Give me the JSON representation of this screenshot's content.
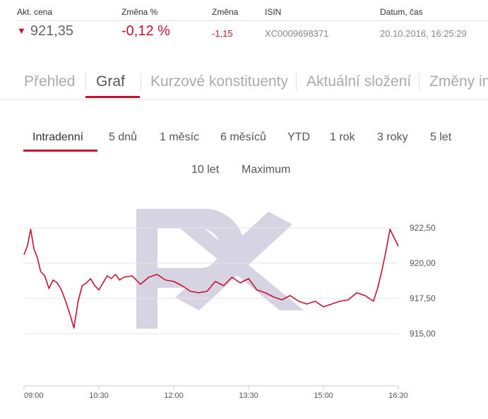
{
  "quote": {
    "labels": {
      "price": "Akt. cena",
      "pct": "Změna %",
      "change": "Změna",
      "isin": "ISIN",
      "datetime": "Datum, čas"
    },
    "price": "921,35",
    "pct": "-0,12 %",
    "change": "-1,15",
    "isin": "XC0009698371",
    "datetime": "20.10.2016, 16:25:29",
    "direction_icon": "down-triangle-icon"
  },
  "tabs": [
    "Přehled",
    "Graf",
    "Kurzové konstituenty",
    "Aktuální složení",
    "Změny in"
  ],
  "active_tab": "Graf",
  "periods": [
    "Intradenní",
    "5 dnů",
    "1 měsíc",
    "6 měsíců",
    "YTD",
    "1 rok",
    "3 roky",
    "5 let",
    "10 let",
    "Maximum"
  ],
  "active_period": "Intradenní",
  "colors": {
    "accent": "#c8102e",
    "watermark": "#d6d3e3",
    "grid": "#e6e6e6"
  },
  "chart_data": {
    "type": "line",
    "title": "",
    "xlabel": "",
    "ylabel": "",
    "x_ticks": [
      "09:00",
      "10:30",
      "12:00",
      "13:30",
      "15:00",
      "16:30"
    ],
    "y_ticks": [
      "922,50",
      "920,00",
      "917,50",
      "915,00"
    ],
    "y_tick_values": [
      922.5,
      920.0,
      917.5,
      915.0
    ],
    "ylim": [
      912.5,
      925.0
    ],
    "xlim": [
      "09:00",
      "16:30"
    ],
    "grid": "horizontal",
    "watermark": "PX",
    "series": [
      {
        "name": "",
        "x": [
          "09:00",
          "09:04",
          "09:08",
          "09:12",
          "09:16",
          "09:20",
          "09:25",
          "09:30",
          "09:35",
          "09:40",
          "09:45",
          "09:50",
          "09:55",
          "10:00",
          "10:05",
          "10:10",
          "10:15",
          "10:20",
          "10:25",
          "10:30",
          "10:35",
          "10:40",
          "10:45",
          "10:50",
          "10:55",
          "11:00",
          "11:10",
          "11:20",
          "11:30",
          "11:40",
          "11:50",
          "12:00",
          "12:10",
          "12:20",
          "12:30",
          "12:40",
          "12:50",
          "13:00",
          "13:10",
          "13:20",
          "13:30",
          "13:40",
          "13:50",
          "14:00",
          "14:10",
          "14:20",
          "14:30",
          "14:40",
          "14:50",
          "15:00",
          "15:10",
          "15:20",
          "15:30",
          "15:40",
          "15:50",
          "16:00",
          "16:05",
          "16:10",
          "16:15",
          "16:20",
          "16:25",
          "16:30"
        ],
        "values": [
          920.6,
          921.2,
          922.4,
          921.0,
          920.4,
          919.4,
          919.1,
          918.2,
          918.8,
          918.6,
          918.1,
          917.3,
          916.4,
          915.4,
          917.3,
          918.4,
          918.6,
          918.9,
          918.4,
          918.1,
          918.6,
          919.1,
          918.9,
          919.2,
          918.8,
          919.0,
          919.1,
          918.5,
          919.0,
          919.2,
          918.8,
          918.7,
          918.4,
          918.0,
          917.9,
          918.0,
          918.7,
          918.4,
          919.0,
          918.6,
          918.9,
          918.1,
          917.9,
          917.6,
          917.4,
          917.7,
          917.3,
          917.1,
          917.3,
          916.9,
          917.1,
          917.3,
          917.4,
          917.9,
          917.7,
          917.3,
          918.2,
          919.4,
          920.8,
          922.4,
          921.8,
          921.2
        ]
      }
    ]
  }
}
